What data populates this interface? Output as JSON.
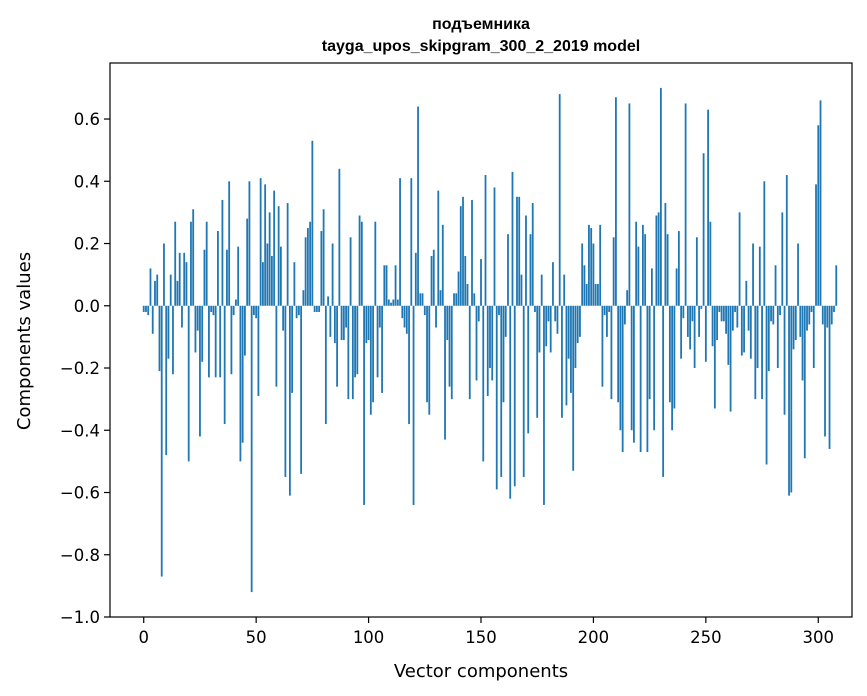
{
  "chart_data": {
    "type": "bar",
    "title_line1": "подъемника",
    "title_line2": "tayga_upos_skipgram_300_2_2019 model",
    "xlabel": "Vector components",
    "ylabel": "Components values",
    "xlim": [
      -15,
      315
    ],
    "ylim": [
      -1.0,
      0.78
    ],
    "xticks": [
      0,
      50,
      100,
      150,
      200,
      250,
      300
    ],
    "xtick_labels": [
      "0",
      "50",
      "100",
      "150",
      "200",
      "250",
      "300"
    ],
    "yticks": [
      -1.0,
      -0.8,
      -0.6,
      -0.4,
      -0.2,
      0.0,
      0.2,
      0.4,
      0.6
    ],
    "ytick_labels": [
      "−1.0",
      "−0.8",
      "−0.6",
      "−0.4",
      "−0.2",
      "0.0",
      "0.2",
      "0.4",
      "0.6"
    ],
    "bar_color": "#1f77b4",
    "grid": false,
    "values": [
      -0.02,
      -0.02,
      -0.03,
      0.12,
      -0.09,
      0.08,
      0.1,
      -0.21,
      -0.87,
      0.2,
      -0.48,
      -0.17,
      0.1,
      -0.22,
      0.27,
      0.08,
      0.17,
      -0.07,
      0.17,
      0.14,
      -0.5,
      0.27,
      0.31,
      -0.15,
      -0.08,
      -0.42,
      -0.18,
      0.18,
      0.27,
      -0.23,
      -0.02,
      -0.03,
      -0.23,
      0.24,
      -0.23,
      0.34,
      -0.38,
      0.18,
      0.4,
      -0.22,
      -0.03,
      0.02,
      0.19,
      -0.5,
      -0.44,
      -0.16,
      0.28,
      0.4,
      -0.92,
      -0.03,
      -0.04,
      -0.29,
      0.41,
      0.14,
      0.39,
      0.2,
      0.3,
      0.16,
      0.37,
      -0.26,
      0.32,
      0.19,
      -0.08,
      -0.55,
      0.33,
      -0.61,
      -0.28,
      0.14,
      -0.04,
      -0.03,
      -0.54,
      0.05,
      0.22,
      0.25,
      0.27,
      0.53,
      -0.02,
      -0.02,
      -0.02,
      0.24,
      0.31,
      -0.38,
      0.03,
      -0.1,
      0.2,
      -0.12,
      -0.26,
      0.44,
      -0.11,
      -0.11,
      -0.07,
      -0.3,
      0.22,
      -0.3,
      -0.23,
      -0.22,
      0.29,
      0.27,
      -0.64,
      -0.12,
      -0.11,
      -0.35,
      -0.31,
      0.27,
      -0.23,
      -0.07,
      -0.28,
      0.13,
      0.13,
      0.02,
      0.01,
      0.02,
      0.13,
      0.02,
      0.41,
      -0.04,
      -0.07,
      -0.09,
      -0.38,
      0.41,
      -0.64,
      0.17,
      0.64,
      0.04,
      0.04,
      -0.03,
      -0.31,
      -0.35,
      0.16,
      0.18,
      -0.07,
      0.37,
      0.05,
      0.26,
      -0.43,
      -0.11,
      -0.26,
      -0.3,
      0.04,
      0.04,
      0.11,
      0.32,
      0.35,
      0.16,
      0.07,
      -0.3,
      0.34,
      0.04,
      -0.24,
      -0.05,
      0.15,
      -0.5,
      0.42,
      -0.29,
      -0.2,
      -0.24,
      0.38,
      -0.59,
      -0.03,
      -0.55,
      -0.31,
      -0.1,
      0.23,
      -0.62,
      0.43,
      -0.58,
      0.35,
      0.35,
      0.1,
      -0.55,
      0.29,
      -0.41,
      0.23,
      0.33,
      -0.02,
      -0.36,
      -0.15,
      0.1,
      -0.64,
      -0.13,
      -0.05,
      -0.15,
      0.14,
      -0.05,
      -0.09,
      0.68,
      -0.36,
      0.1,
      -0.32,
      -0.17,
      -0.28,
      -0.53,
      -0.2,
      -0.12,
      -0.1,
      0.2,
      0.13,
      0.07,
      0.26,
      0.25,
      0.2,
      0.07,
      0.07,
      0.26,
      -0.26,
      -0.03,
      -0.1,
      -0.02,
      -0.3,
      0.22,
      0.67,
      -0.31,
      -0.4,
      -0.47,
      -0.06,
      0.05,
      0.65,
      -0.4,
      -0.44,
      0.27,
      0.19,
      -0.47,
      0.26,
      0.23,
      -0.47,
      -0.3,
      0.12,
      -0.4,
      0.29,
      0.3,
      0.7,
      -0.55,
      0.33,
      0.23,
      -0.31,
      -0.4,
      -0.33,
      0.12,
      0.24,
      -0.17,
      -0.04,
      0.65,
      -0.1,
      -0.14,
      -0.05,
      -0.2,
      0.22,
      -0.1,
      -0.01,
      0.49,
      -0.18,
      0.63,
      0.27,
      -0.13,
      -0.33,
      -0.11,
      -0.02,
      -0.05,
      -0.05,
      -0.09,
      -0.19,
      -0.34,
      -0.08,
      -0.02,
      -0.07,
      0.3,
      -0.16,
      -0.15,
      0.08,
      -0.08,
      -0.17,
      0.2,
      -0.3,
      -0.2,
      0.19,
      -0.3,
      0.4,
      -0.51,
      -0.21,
      -0.05,
      -0.06,
      0.13,
      -0.2,
      -0.03,
      0.3,
      -0.35,
      0.42,
      -0.61,
      -0.6,
      -0.14,
      -0.11,
      0.2,
      -0.1,
      -0.24,
      -0.49,
      -0.08,
      -0.06,
      -0.02,
      -0.2,
      0.39,
      0.58,
      0.66,
      -0.06,
      -0.42,
      -0.07,
      -0.46,
      -0.06,
      -0.02,
      0.13
    ]
  }
}
